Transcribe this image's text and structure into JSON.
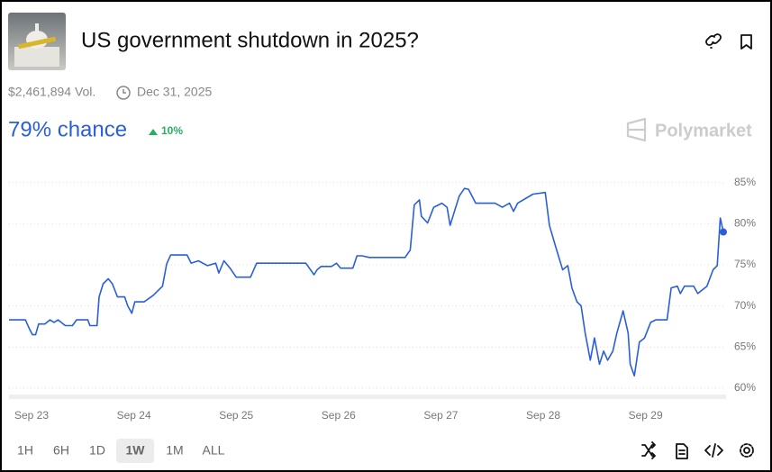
{
  "market": {
    "title": "US government shutdown in 2025?",
    "volume": "$2,461,894 Vol.",
    "end_date": "Dec 31, 2025",
    "chance": "79% chance",
    "change": "10%",
    "brand": "Polymarket"
  },
  "range_buttons": [
    "1H",
    "6H",
    "1D",
    "1W",
    "1M",
    "ALL"
  ],
  "chart_data": {
    "type": "line",
    "color": "#2a5fd6",
    "grid": true,
    "x": [
      -0.22,
      -0.06,
      -0.02,
      0.01,
      0.04,
      0.07,
      0.13,
      0.18,
      0.22,
      0.26,
      0.33,
      0.4,
      0.44,
      0.55,
      0.57,
      0.64,
      0.66,
      0.7,
      0.75,
      0.79,
      0.84,
      0.91,
      0.94,
      0.98,
      1.01,
      1.1,
      1.19,
      1.28,
      1.32,
      1.36,
      1.52,
      1.56,
      1.63,
      1.72,
      1.8,
      1.83,
      1.88,
      1.94,
      2.0,
      2.14,
      2.2,
      2.68,
      2.76,
      2.79,
      2.83,
      2.93,
      2.98,
      3.02,
      3.14,
      3.18,
      3.23,
      3.3,
      3.65,
      3.7,
      3.74,
      3.79,
      3.81,
      3.87,
      3.93,
      4.01,
      4.06,
      4.09,
      4.14,
      4.18,
      4.23,
      4.27,
      4.34,
      4.53,
      4.6,
      4.67,
      4.71,
      4.75,
      4.9,
      5.02,
      5.06,
      5.11,
      5.19,
      5.24,
      5.28,
      5.33,
      5.37,
      5.41,
      5.46,
      5.5,
      5.55,
      5.59,
      5.63,
      5.68,
      5.72,
      5.78,
      5.83,
      5.85,
      5.89,
      5.94,
      5.99,
      6.05,
      6.1,
      6.21,
      6.25,
      6.31,
      6.34,
      6.38,
      6.47,
      6.51,
      6.6,
      6.66,
      6.7,
      6.73,
      6.76
    ],
    "values": [
      68.3,
      68.3,
      67.2,
      66.5,
      66.5,
      67.8,
      67.8,
      68.3,
      68.0,
      68.3,
      67.6,
      67.6,
      68.3,
      68.3,
      67.6,
      67.6,
      71.1,
      72.7,
      73.3,
      72.7,
      71.1,
      71.1,
      70.0,
      69.1,
      70.5,
      70.5,
      71.3,
      72.4,
      75.1,
      76.2,
      76.2,
      75.2,
      75.5,
      74.9,
      75.2,
      74.0,
      75.5,
      74.6,
      73.5,
      73.5,
      75.2,
      75.2,
      73.8,
      74.4,
      74.8,
      74.8,
      75.2,
      74.6,
      74.6,
      76.1,
      76.1,
      75.9,
      75.9,
      76.8,
      82.3,
      82.9,
      80.9,
      80.1,
      82.0,
      82.5,
      82.0,
      79.8,
      81.8,
      83.4,
      84.3,
      84.2,
      82.5,
      82.5,
      82.0,
      82.5,
      81.5,
      82.5,
      83.6,
      83.8,
      79.8,
      77.7,
      74.4,
      74.9,
      72.2,
      70.5,
      70.0,
      66.7,
      63.4,
      66.1,
      62.9,
      64.5,
      63.4,
      64.5,
      66.7,
      69.4,
      66.7,
      62.9,
      61.5,
      65.6,
      66.1,
      68.0,
      68.3,
      68.3,
      72.2,
      72.4,
      71.5,
      72.4,
      72.4,
      71.5,
      72.4,
      74.4,
      74.9,
      80.7,
      79.0
    ],
    "xlim": [
      -0.22,
      6.76
    ],
    "xticks": [
      {
        "value": 0,
        "label": "Sep 23"
      },
      {
        "value": 1,
        "label": "Sep 24"
      },
      {
        "value": 2,
        "label": "Sep 25"
      },
      {
        "value": 3,
        "label": "Sep 26"
      },
      {
        "value": 4,
        "label": "Sep 27"
      },
      {
        "value": 5,
        "label": "Sep 28"
      },
      {
        "value": 6,
        "label": "Sep 29"
      }
    ],
    "ylim": [
      59.0,
      86.4
    ],
    "yticks": [
      {
        "value": 60,
        "label": "60%"
      },
      {
        "value": 65,
        "label": "65%"
      },
      {
        "value": 70,
        "label": "70%"
      },
      {
        "value": 75,
        "label": "75%"
      },
      {
        "value": 80,
        "label": "80%"
      },
      {
        "value": 85,
        "label": "85%"
      }
    ]
  }
}
